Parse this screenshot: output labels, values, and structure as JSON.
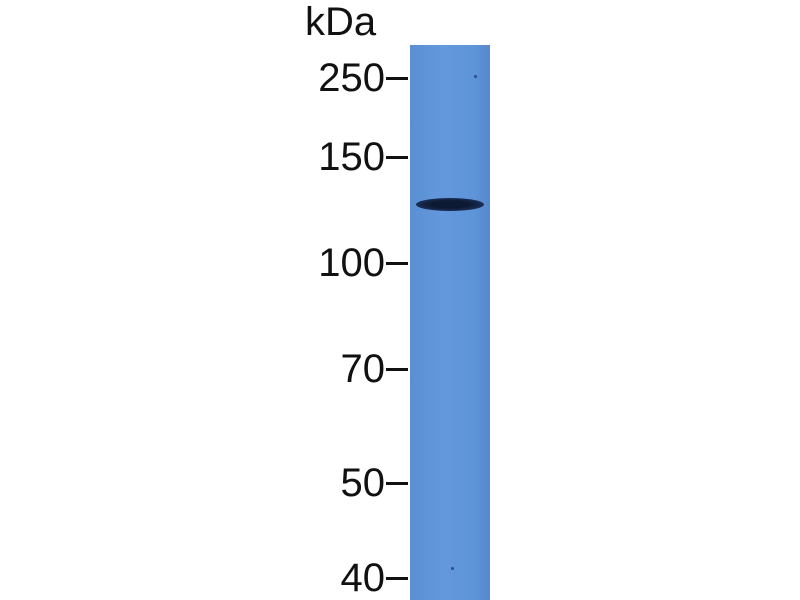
{
  "unit_label": "kDa",
  "markers": [
    {
      "label": "250",
      "kda": 250
    },
    {
      "label": "150",
      "kda": 150
    },
    {
      "label": "100",
      "kda": 100
    },
    {
      "label": "70",
      "kda": 70
    },
    {
      "label": "50",
      "kda": 50
    },
    {
      "label": "40",
      "kda": 40
    }
  ],
  "lane_color": "#5e94d8",
  "band": {
    "approx_kda": 125,
    "color": "#0d1a33"
  }
}
